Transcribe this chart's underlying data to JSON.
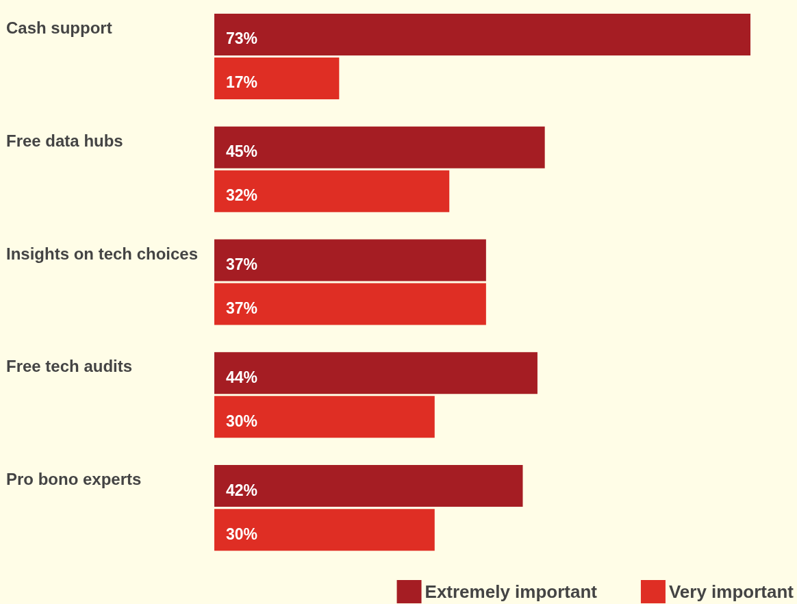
{
  "chart_data": {
    "type": "bar",
    "orientation": "horizontal",
    "categories": [
      "Cash support",
      "Free data hubs",
      "Insights on tech choices",
      "Free tech audits",
      "Pro bono experts"
    ],
    "series": [
      {
        "name": "Extremely important",
        "color": "#a51d23",
        "values": [
          73,
          45,
          37,
          44,
          42
        ],
        "value_labels": [
          "73%",
          "45%",
          "37%",
          "44%",
          "42%"
        ]
      },
      {
        "name": "Very important",
        "color": "#df2e24",
        "values": [
          17,
          32,
          37,
          30,
          30
        ],
        "value_labels": [
          "17%",
          "32%",
          "37%",
          "30%",
          "30%"
        ]
      }
    ],
    "legend": "bottom right"
  }
}
